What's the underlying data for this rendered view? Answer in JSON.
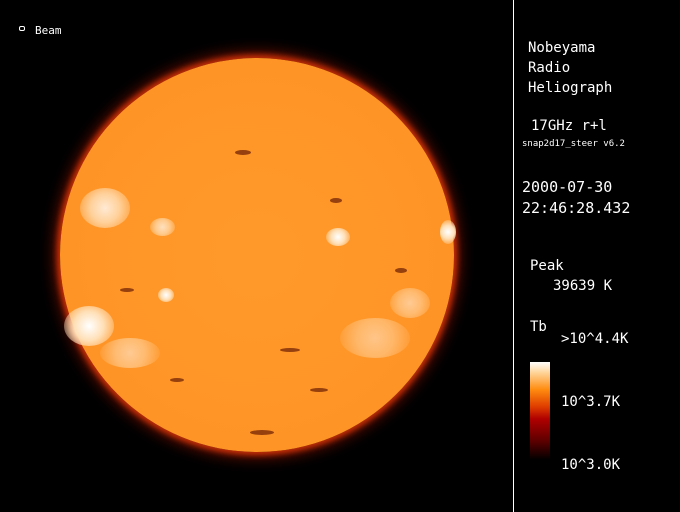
{
  "beam": {
    "label": "Beam",
    "icon": "beam-ellipse-icon"
  },
  "info": {
    "instrument": [
      "Nobeyama",
      "Radio",
      "Heliograph"
    ],
    "frequency": "17GHz r+l",
    "software": "snap2d17_steer v6.2",
    "date": "2000-07-30",
    "time": "22:46:28.432",
    "peak_label": "Peak",
    "peak_value": "39639 K"
  },
  "colorbar": {
    "title": "Tb",
    "max_label": ">10^4.4K",
    "mid_label": "10^3.7K",
    "min_label": "10^3.0K",
    "colors": [
      "#ffffff",
      "#ff8c10",
      "#b00000",
      "#000000"
    ]
  }
}
